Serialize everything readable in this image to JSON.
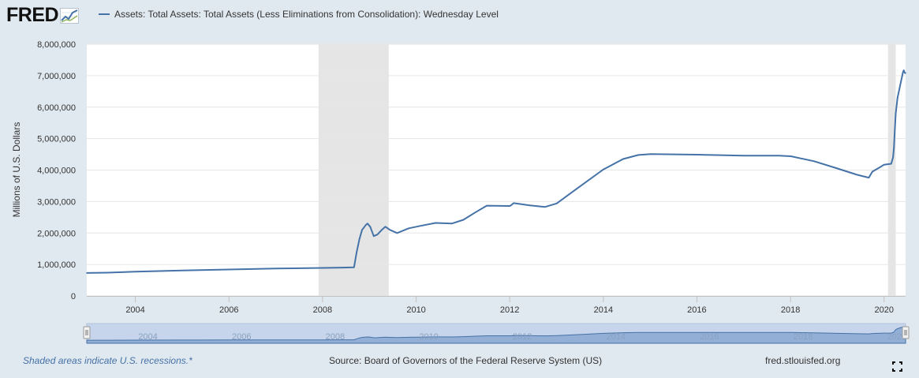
{
  "brand": {
    "logo_text": "FRED"
  },
  "legend": {
    "series_label": "Assets: Total Assets: Total Assets (Less Eliminations from Consolidation): Wednesday Level"
  },
  "footer": {
    "recession_note": "Shaded areas indicate U.S. recessions.*",
    "source": "Source: Board of Governors of the Federal Reserve System (US)",
    "site": "fred.stlouisfed.org"
  },
  "icons": {
    "logo_chart": "line-chart-icon",
    "fullscreen": "fullscreen-icon"
  },
  "colors": {
    "series": "#4572a7",
    "recession": "#e5e5e5",
    "background": "#e1e9f0",
    "plot": "#ffffff"
  },
  "chart_data": {
    "type": "line",
    "title": "",
    "xlabel": "",
    "ylabel": "Millions of U.S. Dollars",
    "xlim": [
      "2002-12-18",
      "2020-06-17"
    ],
    "ylim": [
      0,
      8000000
    ],
    "yticks": [
      0,
      1000000,
      2000000,
      3000000,
      4000000,
      5000000,
      6000000,
      7000000,
      8000000
    ],
    "ytick_labels": [
      "0",
      "1,000,000",
      "2,000,000",
      "3,000,000",
      "4,000,000",
      "5,000,000",
      "6,000,000",
      "7,000,000",
      "8,000,000"
    ],
    "xticks": [
      "2004-01-01",
      "2006-01-01",
      "2008-01-01",
      "2010-01-01",
      "2012-01-01",
      "2014-01-01",
      "2016-01-01",
      "2018-01-01",
      "2020-01-01"
    ],
    "xtick_labels": [
      "2004",
      "2006",
      "2008",
      "2010",
      "2012",
      "2014",
      "2016",
      "2018",
      "2020"
    ],
    "grid": true,
    "recessions": [
      [
        "2007-12-01",
        "2009-06-01"
      ],
      [
        "2020-02-01",
        "2020-04-01"
      ]
    ],
    "series": [
      {
        "name": "Assets: Total Assets: Total Assets (Less Eliminations from Consolidation): Wednesday Level",
        "color": "#4572a7",
        "points": [
          [
            "2002-12-18",
            730000
          ],
          [
            "2003-06-01",
            740000
          ],
          [
            "2004-01-01",
            770000
          ],
          [
            "2005-01-01",
            810000
          ],
          [
            "2006-01-01",
            840000
          ],
          [
            "2007-01-01",
            870000
          ],
          [
            "2008-01-01",
            890000
          ],
          [
            "2008-06-01",
            900000
          ],
          [
            "2008-09-03",
            910000
          ],
          [
            "2008-09-24",
            1400000
          ],
          [
            "2008-10-15",
            1800000
          ],
          [
            "2008-11-05",
            2100000
          ],
          [
            "2008-12-03",
            2250000
          ],
          [
            "2008-12-17",
            2300000
          ],
          [
            "2009-01-07",
            2200000
          ],
          [
            "2009-02-04",
            1900000
          ],
          [
            "2009-03-04",
            1950000
          ],
          [
            "2009-04-08",
            2100000
          ],
          [
            "2009-05-06",
            2200000
          ],
          [
            "2009-06-10",
            2100000
          ],
          [
            "2009-08-05",
            2000000
          ],
          [
            "2009-11-04",
            2150000
          ],
          [
            "2010-03-03",
            2250000
          ],
          [
            "2010-06-02",
            2320000
          ],
          [
            "2010-10-06",
            2300000
          ],
          [
            "2011-01-05",
            2420000
          ],
          [
            "2011-04-06",
            2650000
          ],
          [
            "2011-07-06",
            2870000
          ],
          [
            "2012-01-04",
            2860000
          ],
          [
            "2012-02-01",
            2950000
          ],
          [
            "2012-06-06",
            2880000
          ],
          [
            "2012-10-03",
            2830000
          ],
          [
            "2013-01-02",
            2940000
          ],
          [
            "2013-06-05",
            3400000
          ],
          [
            "2014-01-01",
            4020000
          ],
          [
            "2014-06-04",
            4350000
          ],
          [
            "2014-10-01",
            4480000
          ],
          [
            "2015-01-07",
            4510000
          ],
          [
            "2016-01-06",
            4490000
          ],
          [
            "2017-01-04",
            4460000
          ],
          [
            "2017-10-04",
            4460000
          ],
          [
            "2018-01-03",
            4440000
          ],
          [
            "2018-07-04",
            4280000
          ],
          [
            "2019-01-02",
            4050000
          ],
          [
            "2019-06-05",
            3850000
          ],
          [
            "2019-09-04",
            3760000
          ],
          [
            "2019-10-02",
            3950000
          ],
          [
            "2019-12-04",
            4100000
          ],
          [
            "2020-01-01",
            4170000
          ],
          [
            "2020-02-26",
            4200000
          ],
          [
            "2020-03-11",
            4400000
          ],
          [
            "2020-03-18",
            4700000
          ],
          [
            "2020-03-25",
            5300000
          ],
          [
            "2020-04-01",
            5800000
          ],
          [
            "2020-04-15",
            6300000
          ],
          [
            "2020-05-06",
            6700000
          ],
          [
            "2020-05-27",
            7100000
          ],
          [
            "2020-06-03",
            7170000
          ],
          [
            "2020-06-10",
            7090000
          ],
          [
            "2020-06-17",
            7080000
          ]
        ]
      }
    ],
    "navigator": {
      "xtick_labels": [
        "2004",
        "2006",
        "2008",
        "2010",
        "2012",
        "2014",
        "2016",
        "2018",
        "2020"
      ]
    }
  }
}
